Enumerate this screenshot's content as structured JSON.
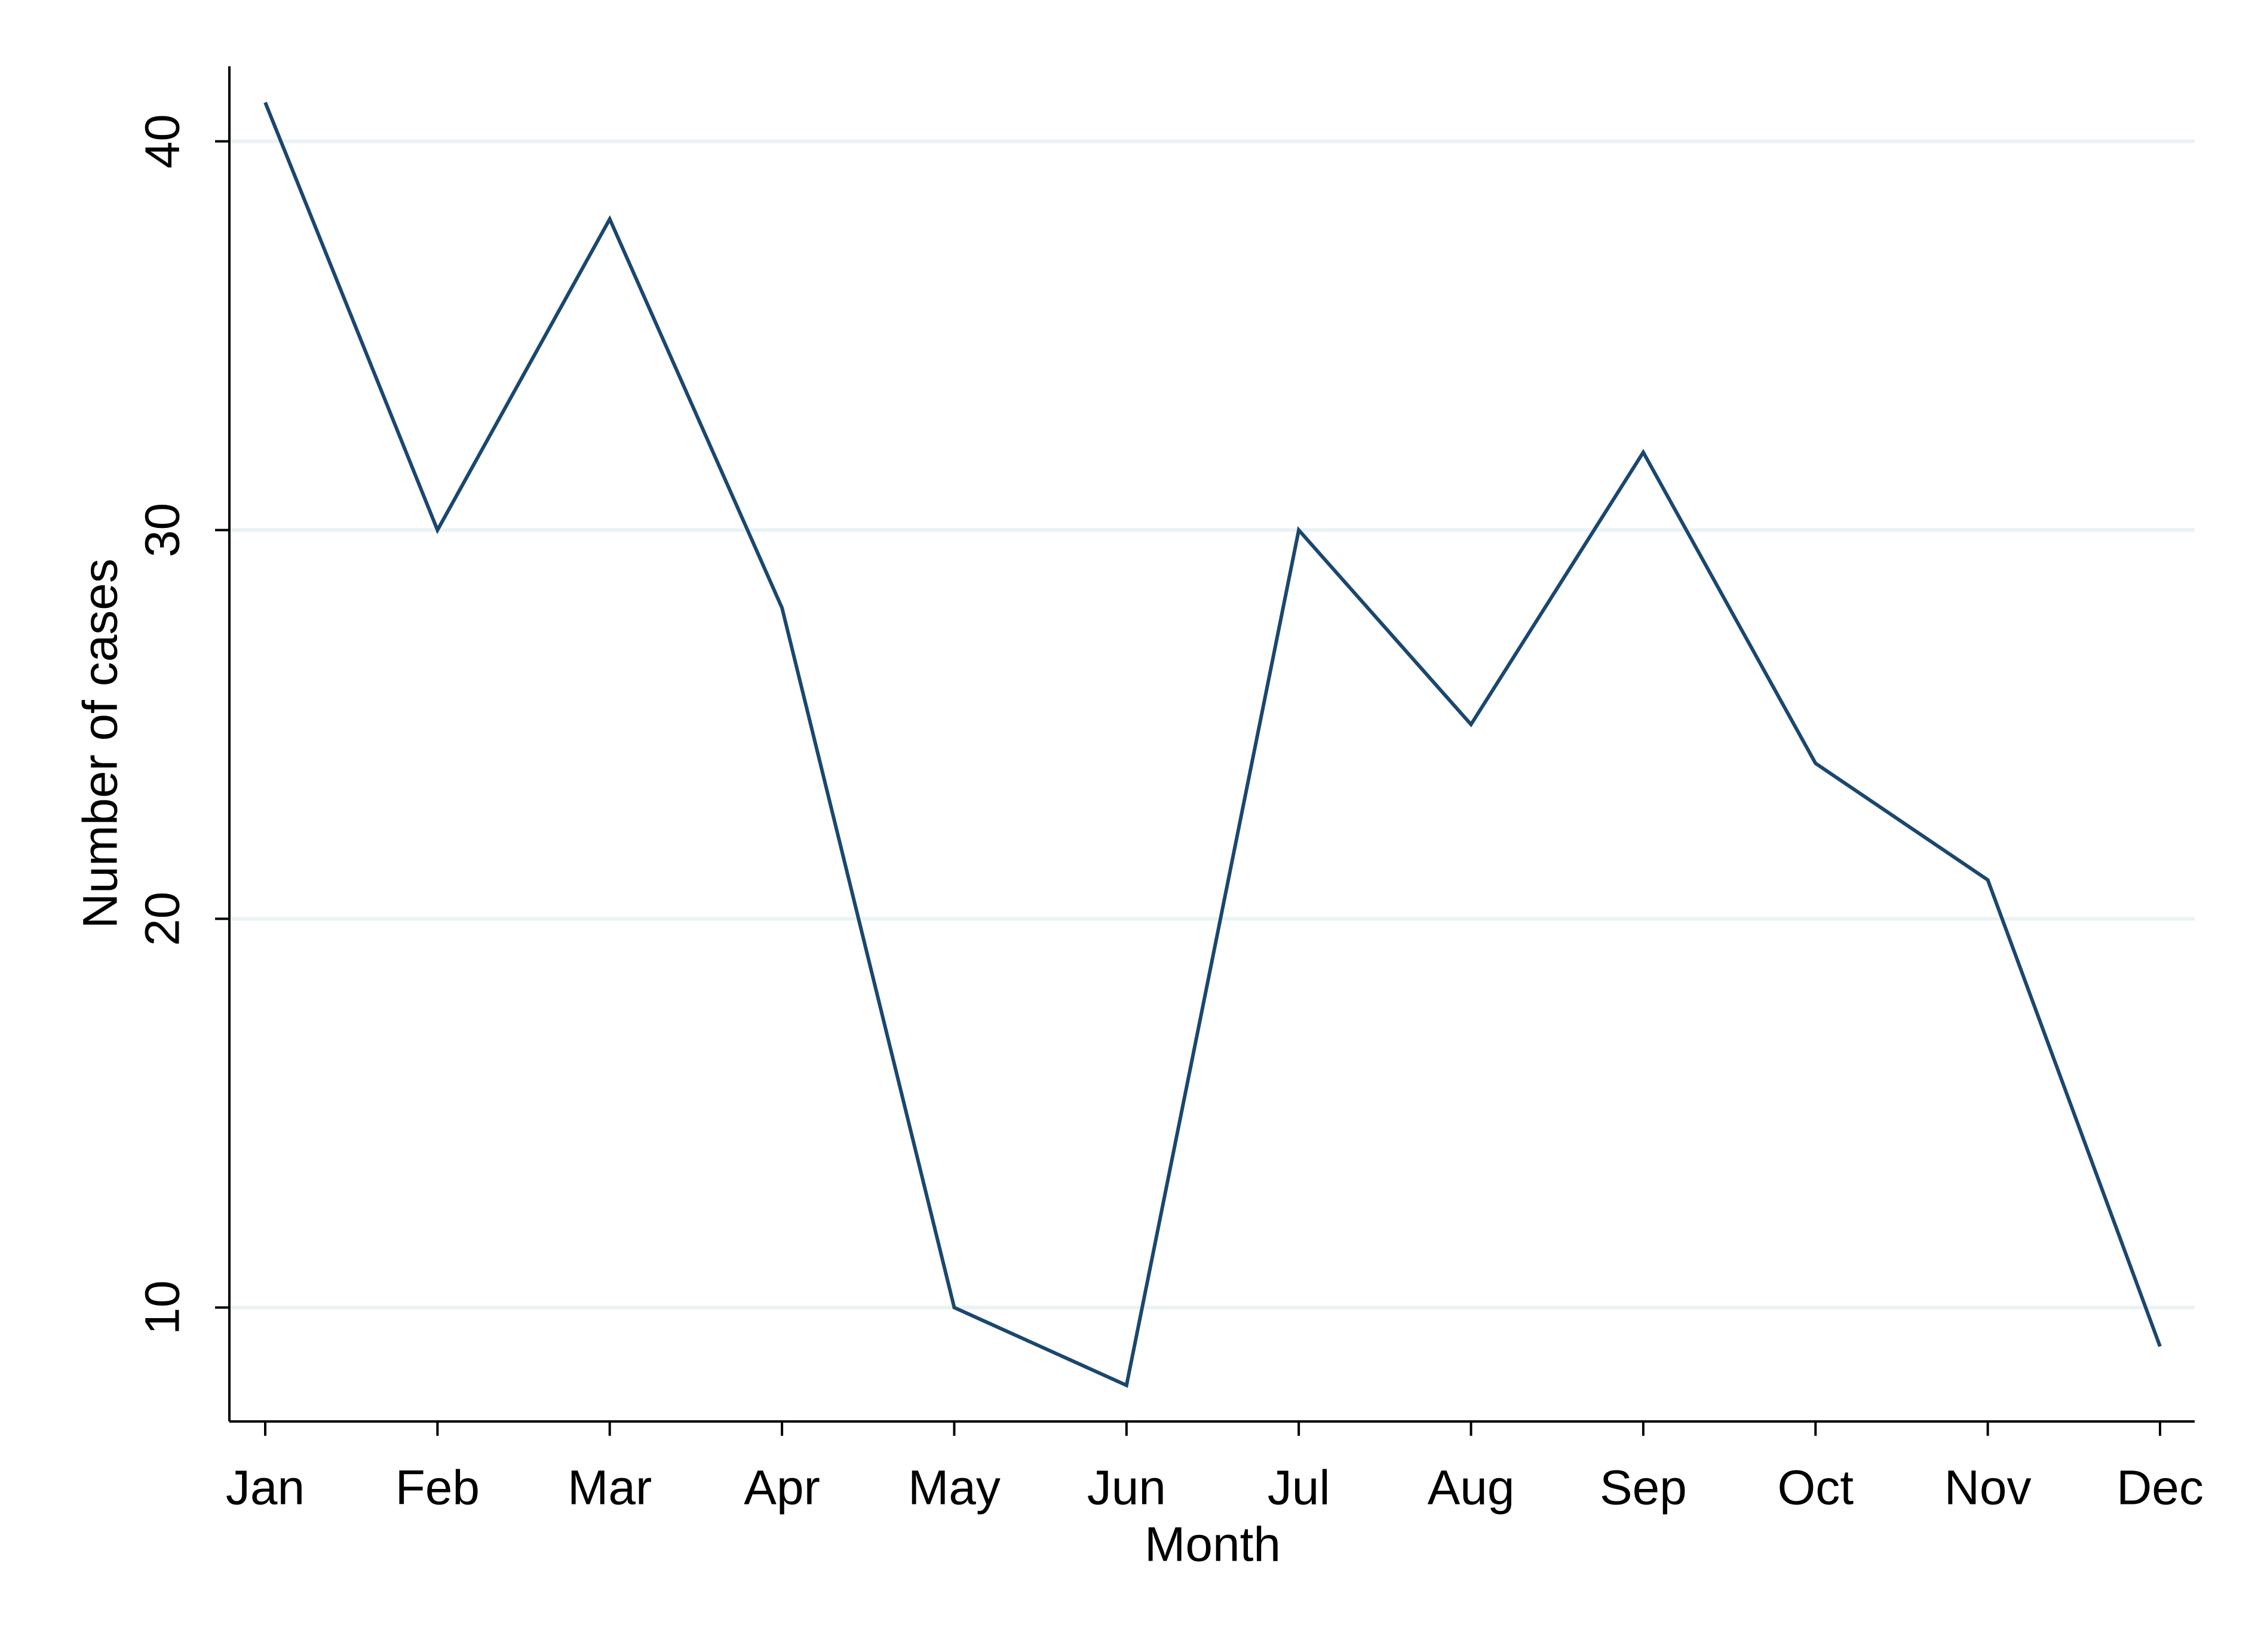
{
  "chart_data": {
    "type": "line",
    "x_label": "Month",
    "y_label": "Number of cases",
    "categories": [
      "Jan",
      "Feb",
      "Mar",
      "Apr",
      "May",
      "Jun",
      "Jul",
      "Aug",
      "Sep",
      "Oct",
      "Nov",
      "Dec"
    ],
    "values": [
      41,
      30,
      38,
      28,
      10,
      8,
      30,
      25,
      32,
      24,
      21,
      9
    ],
    "color": "#1a476f",
    "ylim": [
      7.07,
      41.93
    ],
    "yticks": [
      10,
      20,
      30,
      40
    ],
    "grid": true
  }
}
